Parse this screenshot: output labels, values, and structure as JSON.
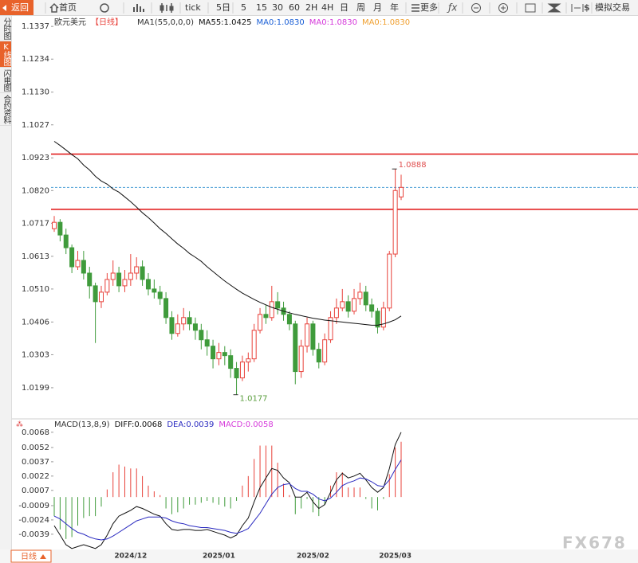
{
  "toolbar": [
    "返回",
    "首页",
    "tick",
    "5日",
    "5",
    "15",
    "30",
    "60",
    "2H",
    "4H",
    "日",
    "周",
    "月",
    "年",
    "更多",
    "模拟交易"
  ],
  "sidebar": [
    "分时图",
    "K线图",
    "闪电图",
    "合约资料"
  ],
  "period_button": "日线",
  "watermark": "FX678",
  "chart_data": [
    {
      "type": "candlestick",
      "title": "欧元美元",
      "period": "【日线】",
      "indicator": "MA1(55,0,0,0)",
      "extra_labels": [
        {
          "text": "MA0:1.0830",
          "color": "#1a5fd6"
        },
        {
          "text": "MA0:1.0830",
          "color": "#d63adb"
        },
        {
          "text": "MA0:1.0830",
          "color": "#f0a030"
        }
      ],
      "up_color": "#e8413a",
      "down_color": "#3f9b3b",
      "ohlc": {
        "open": [
          1.07,
          1.072,
          1.068,
          1.064,
          1.058,
          1.06,
          1.056,
          1.052,
          1.047,
          1.05,
          1.054,
          1.056,
          1.052,
          1.054,
          1.056,
          1.058,
          1.054,
          1.051,
          1.05,
          1.048,
          1.042,
          1.037,
          1.04,
          1.042,
          1.04,
          1.038,
          1.035,
          1.033,
          1.029,
          1.031,
          1.03,
          1.026,
          1.023,
          1.028,
          1.029,
          1.038,
          1.043,
          1.042,
          1.047,
          1.045,
          1.043,
          1.04,
          1.025,
          1.033,
          1.04,
          1.032,
          1.028,
          1.035,
          1.042,
          1.045,
          1.047,
          1.044,
          1.048,
          1.05,
          1.046,
          1.044,
          1.039,
          1.045,
          1.062,
          1.08
        ],
        "high": [
          1.074,
          1.073,
          1.07,
          1.065,
          1.063,
          1.063,
          1.058,
          1.053,
          1.052,
          1.056,
          1.06,
          1.058,
          1.057,
          1.062,
          1.061,
          1.06,
          1.056,
          1.054,
          1.052,
          1.05,
          1.044,
          1.043,
          1.045,
          1.044,
          1.042,
          1.04,
          1.038,
          1.035,
          1.034,
          1.033,
          1.032,
          1.028,
          1.03,
          1.031,
          1.04,
          1.045,
          1.046,
          1.052,
          1.05,
          1.047,
          1.044,
          1.041,
          1.035,
          1.042,
          1.041,
          1.034,
          1.037,
          1.044,
          1.048,
          1.051,
          1.049,
          1.051,
          1.053,
          1.052,
          1.048,
          1.045,
          1.047,
          1.063,
          1.0888,
          1.087
        ],
        "low": [
          1.069,
          1.066,
          1.062,
          1.056,
          1.057,
          1.054,
          1.048,
          1.034,
          1.045,
          1.049,
          1.052,
          1.05,
          1.05,
          1.052,
          1.054,
          1.052,
          1.049,
          1.048,
          1.046,
          1.04,
          1.035,
          1.036,
          1.038,
          1.038,
          1.035,
          1.032,
          1.03,
          1.026,
          1.027,
          1.027,
          1.023,
          1.0177,
          1.022,
          1.025,
          1.028,
          1.037,
          1.04,
          1.041,
          1.043,
          1.041,
          1.038,
          1.021,
          1.023,
          1.031,
          1.03,
          1.026,
          1.027,
          1.034,
          1.04,
          1.044,
          1.042,
          1.043,
          1.046,
          1.044,
          1.042,
          1.037,
          1.038,
          1.044,
          1.061,
          1.079
        ],
        "close": [
          1.072,
          1.068,
          1.064,
          1.058,
          1.06,
          1.056,
          1.052,
          1.047,
          1.05,
          1.054,
          1.056,
          1.052,
          1.054,
          1.056,
          1.058,
          1.054,
          1.051,
          1.05,
          1.048,
          1.042,
          1.037,
          1.04,
          1.042,
          1.04,
          1.038,
          1.035,
          1.033,
          1.029,
          1.031,
          1.03,
          1.026,
          1.023,
          1.028,
          1.029,
          1.038,
          1.043,
          1.042,
          1.047,
          1.045,
          1.043,
          1.04,
          1.025,
          1.033,
          1.04,
          1.032,
          1.028,
          1.035,
          1.042,
          1.045,
          1.047,
          1.044,
          1.048,
          1.05,
          1.046,
          1.044,
          1.039,
          1.045,
          1.062,
          1.082,
          1.083
        ]
      },
      "series": [
        {
          "name": "MA55:1.0425",
          "color": "#111111",
          "values": [
            1.0975,
            1.0962,
            1.0948,
            1.0933,
            1.092,
            1.09,
            1.0885,
            1.0865,
            1.085,
            1.084,
            1.0825,
            1.0815,
            1.08,
            1.0785,
            1.0768,
            1.075,
            1.0735,
            1.0718,
            1.07,
            1.0685,
            1.0668,
            1.0652,
            1.0638,
            1.0622,
            1.061,
            1.0597,
            1.058,
            1.0565,
            1.055,
            1.0535,
            1.0522,
            1.0509,
            1.0497,
            1.0487,
            1.0477,
            1.0468,
            1.046,
            1.0452,
            1.0446,
            1.044,
            1.0435,
            1.043,
            1.0426,
            1.0422,
            1.0418,
            1.0415,
            1.0412,
            1.041,
            1.0408,
            1.0406,
            1.0404,
            1.0402,
            1.04,
            1.0398,
            1.0396,
            1.0396,
            1.04,
            1.0406,
            1.0413,
            1.0425
          ]
        }
      ],
      "hlines": [
        {
          "value": 1.0935,
          "color": "#e01010",
          "style": "solid"
        },
        {
          "value": 1.0761,
          "color": "#e01010",
          "style": "solid"
        },
        {
          "value": 1.083,
          "color": "#4a9fd6",
          "style": "dashed"
        }
      ],
      "annotations": [
        {
          "text": "1.0888",
          "value": 1.0888,
          "color": "#e05050"
        },
        {
          "text": "1.0177",
          "value": 1.0177,
          "color": "#5a9e3c"
        }
      ],
      "ylim": [
        1.0111,
        1.1365
      ],
      "yticks": [
        1.1337,
        1.1234,
        {
          "value": 1.113,
          "label": "1.1130"
        },
        1.1027,
        1.0923,
        {
          "value": 1.082,
          "label": "1.0820"
        },
        1.0717,
        1.0613,
        {
          "value": 1.051,
          "label": "1.0510"
        },
        1.0406,
        1.0303,
        1.0199
      ],
      "grid": false
    },
    {
      "type": "macd",
      "indicator": "MACD(13,8,9)",
      "categories": [
        null,
        null,
        null,
        null,
        null,
        null,
        null,
        null,
        null,
        null,
        null,
        null,
        null,
        "2024/12",
        null,
        null,
        null,
        null,
        null,
        null,
        null,
        null,
        null,
        null,
        null,
        null,
        null,
        null,
        "2025/01",
        null,
        null,
        null,
        null,
        null,
        null,
        null,
        null,
        null,
        null,
        null,
        null,
        null,
        null,
        null,
        "2025/02",
        null,
        null,
        null,
        null,
        null,
        null,
        null,
        null,
        null,
        null,
        null,
        null,
        null,
        "2025/03",
        null
      ],
      "series": [
        {
          "name": "DIFF:0.0068",
          "color": "#111111",
          "kind": "line",
          "values": [
            -0.003,
            -0.004,
            -0.005,
            -0.0054,
            -0.0052,
            -0.005,
            -0.0052,
            -0.0054,
            -0.005,
            -0.004,
            -0.0028,
            -0.002,
            -0.0017,
            -0.0014,
            -0.001,
            -0.0012,
            -0.0015,
            -0.0018,
            -0.002,
            -0.0028,
            -0.0034,
            -0.0035,
            -0.0034,
            -0.0034,
            -0.0035,
            -0.0035,
            -0.0034,
            -0.0036,
            -0.0038,
            -0.004,
            -0.0043,
            -0.004,
            -0.003,
            -0.0022,
            -0.0005,
            0.001,
            0.002,
            0.003,
            0.0028,
            0.002,
            0.0015,
            0.0,
            0.0,
            0.0005,
            -0.0005,
            -0.0012,
            -0.0008,
            0.0005,
            0.0018,
            0.0025,
            0.002,
            0.0022,
            0.0025,
            0.0018,
            0.001,
            0.0005,
            0.001,
            0.003,
            0.0055,
            0.0068
          ]
        },
        {
          "name": "DEA:0.0039",
          "color": "#2a2ac0",
          "kind": "line",
          "values": [
            -0.002,
            -0.0023,
            -0.0028,
            -0.0033,
            -0.0037,
            -0.0039,
            -0.0042,
            -0.0044,
            -0.0045,
            -0.0044,
            -0.0041,
            -0.0037,
            -0.0033,
            -0.0029,
            -0.0025,
            -0.0023,
            -0.0021,
            -0.0021,
            -0.0021,
            -0.0022,
            -0.0025,
            -0.0027,
            -0.0028,
            -0.003,
            -0.0031,
            -0.0032,
            -0.0032,
            -0.0033,
            -0.0034,
            -0.0035,
            -0.0037,
            -0.0038,
            -0.0036,
            -0.0033,
            -0.0025,
            -0.0017,
            -0.0007,
            0.0003,
            0.001,
            0.0013,
            0.0014,
            0.0009,
            0.0006,
            0.0006,
            0.0003,
            -0.0002,
            -0.0004,
            -0.0001,
            0.0005,
            0.0012,
            0.0015,
            0.0017,
            0.002,
            0.0019,
            0.0016,
            0.0012,
            0.0011,
            0.0018,
            0.0029,
            0.0039
          ]
        },
        {
          "name": "MACD:0.0058",
          "color": "#d63adb",
          "kind": "histogram",
          "up_color": "#e8413a",
          "down_color": "#3f9b3b",
          "values": [
            -0.002,
            -0.0034,
            -0.0044,
            -0.0042,
            -0.003,
            -0.0022,
            -0.002,
            -0.002,
            -0.001,
            0.0008,
            0.0026,
            0.0034,
            0.0032,
            0.003,
            0.003,
            0.0022,
            0.0012,
            0.0006,
            0.0002,
            -0.0012,
            -0.0018,
            -0.0016,
            -0.0012,
            -0.0008,
            -0.0008,
            -0.0006,
            -0.0004,
            -0.0006,
            -0.0008,
            -0.001,
            -0.0012,
            -0.0004,
            0.0012,
            0.0022,
            0.004,
            0.0054,
            0.0054,
            0.0054,
            0.0036,
            0.0014,
            0.0002,
            -0.0018,
            -0.0012,
            -0.0002,
            -0.0016,
            -0.002,
            -0.0008,
            0.0012,
            0.0026,
            0.0026,
            0.001,
            0.001,
            0.001,
            -0.0002,
            -0.0012,
            -0.0014,
            -0.0002,
            0.0024,
            0.0052,
            0.0058
          ]
        }
      ],
      "ylim": [
        -0.0055,
        0.0072
      ],
      "yticks": [
        0.0068,
        0.0052,
        0.0037,
        0.0022,
        0.0007,
        -0.0009,
        -0.0024,
        -0.0039
      ],
      "grid": false
    }
  ]
}
